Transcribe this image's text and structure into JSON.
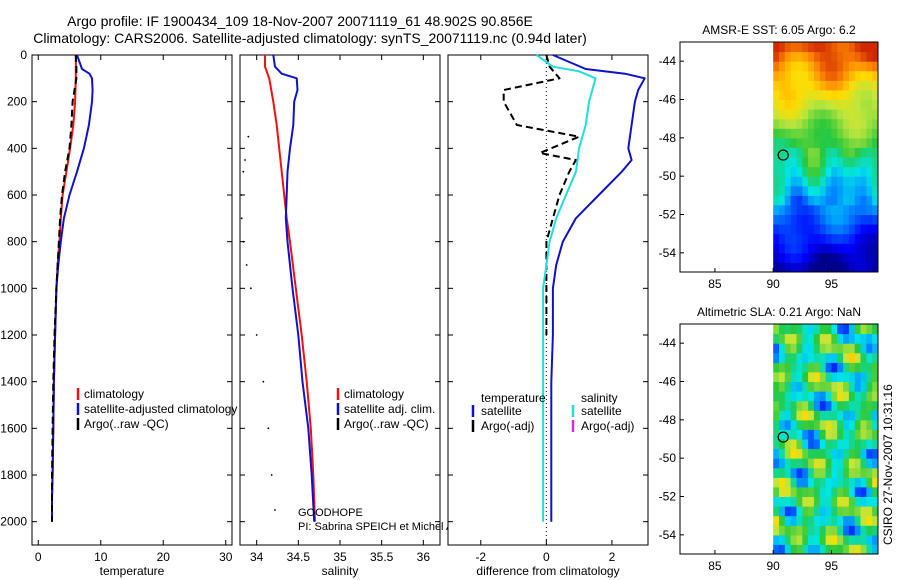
{
  "header": {
    "line1": "Argo profile: IF 1900434_109 18-Nov-2007 20071119_61 48.902S 90.856E",
    "line2": "Climatology: CARS2006. Satellite-adjusted climatology: synTS_20071119.nc (0.94d later)"
  },
  "colors": {
    "climatology": "#ee1111",
    "satellite": "#1111cc",
    "argo": "#000000",
    "satellite_salinity": "#22dddd",
    "argo_adj_salinity": "#cc33cc"
  },
  "chart_data": [
    {
      "id": "temperature",
      "type": "line",
      "xlabel": "temperature",
      "xlim": [
        -1,
        31
      ],
      "ylim": [
        2100,
        0
      ],
      "xticks": [
        0,
        10,
        20,
        30
      ],
      "yticks": [
        0,
        200,
        400,
        600,
        800,
        1000,
        1200,
        1400,
        1600,
        1800,
        2000
      ],
      "series": [
        {
          "name": "climatology",
          "style": "solid",
          "color": "#ee1111",
          "points": [
            [
              6.0,
              0
            ],
            [
              6.0,
              50
            ],
            [
              6.0,
              100
            ],
            [
              5.9,
              200
            ],
            [
              5.6,
              300
            ],
            [
              5.1,
              400
            ],
            [
              4.5,
              500
            ],
            [
              3.9,
              600
            ],
            [
              3.6,
              700
            ],
            [
              3.4,
              800
            ],
            [
              3.1,
              900
            ],
            [
              2.9,
              1000
            ],
            [
              2.7,
              1200
            ],
            [
              2.5,
              1400
            ],
            [
              2.4,
              1600
            ],
            [
              2.3,
              1800
            ],
            [
              2.2,
              1900
            ],
            [
              2.2,
              2000
            ]
          ]
        },
        {
          "name": "satellite-adjusted climatology",
          "style": "solid",
          "color": "#1111cc",
          "points": [
            [
              6.2,
              0
            ],
            [
              7.0,
              60
            ],
            [
              8.2,
              80
            ],
            [
              8.6,
              100
            ],
            [
              8.7,
              150
            ],
            [
              8.6,
              200
            ],
            [
              8.1,
              300
            ],
            [
              7.3,
              400
            ],
            [
              6.2,
              500
            ],
            [
              5.0,
              600
            ],
            [
              4.1,
              700
            ],
            [
              3.6,
              800
            ],
            [
              3.2,
              900
            ],
            [
              2.9,
              1000
            ],
            [
              2.7,
              1200
            ],
            [
              2.5,
              1400
            ],
            [
              2.4,
              1600
            ],
            [
              2.3,
              1800
            ],
            [
              2.2,
              1900
            ],
            [
              2.2,
              2000
            ]
          ]
        },
        {
          "name": "Argo(..raw -QC)",
          "style": "dashed",
          "color": "#000000",
          "points": [
            [
              6.0,
              0
            ],
            [
              6.1,
              50
            ],
            [
              6.1,
              100
            ],
            [
              5.5,
              200
            ],
            [
              5.3,
              300
            ],
            [
              5.0,
              400
            ],
            [
              4.3,
              500
            ],
            [
              3.8,
              600
            ],
            [
              3.5,
              700
            ],
            [
              3.3,
              800
            ],
            [
              3.1,
              900
            ],
            [
              2.9,
              1000
            ],
            [
              2.6,
              1200
            ],
            [
              2.4,
              1400
            ],
            [
              2.3,
              1600
            ],
            [
              2.2,
              1800
            ],
            [
              2.2,
              1900
            ],
            [
              2.2,
              2000
            ]
          ]
        }
      ],
      "legend": [
        "climatology",
        "satellite-adjusted climatology",
        "Argo(..raw -QC)"
      ]
    },
    {
      "id": "salinity",
      "type": "line",
      "xlabel": "salinity",
      "xlim": [
        33.8,
        36.2
      ],
      "ylim": [
        2100,
        0
      ],
      "xticks": [
        34,
        34.5,
        35,
        35.5,
        36
      ],
      "xtick_labels": [
        "34",
        "34.5",
        "35",
        "35.5",
        "36"
      ],
      "series": [
        {
          "name": "climatology",
          "style": "solid",
          "color": "#ee1111",
          "points": [
            [
              34.1,
              0
            ],
            [
              34.1,
              50
            ],
            [
              34.15,
              100
            ],
            [
              34.2,
              200
            ],
            [
              34.24,
              300
            ],
            [
              34.27,
              400
            ],
            [
              34.3,
              500
            ],
            [
              34.33,
              600
            ],
            [
              34.36,
              700
            ],
            [
              34.4,
              800
            ],
            [
              34.47,
              1000
            ],
            [
              34.54,
              1200
            ],
            [
              34.6,
              1400
            ],
            [
              34.65,
              1600
            ],
            [
              34.68,
              1800
            ],
            [
              34.7,
              2000
            ]
          ]
        },
        {
          "name": "satellite adj. clim.",
          "style": "solid",
          "color": "#1111cc",
          "points": [
            [
              34.2,
              0
            ],
            [
              34.22,
              50
            ],
            [
              34.3,
              80
            ],
            [
              34.48,
              100
            ],
            [
              34.49,
              150
            ],
            [
              34.45,
              200
            ],
            [
              34.44,
              300
            ],
            [
              34.4,
              400
            ],
            [
              34.37,
              500
            ],
            [
              34.36,
              600
            ],
            [
              34.35,
              700
            ],
            [
              34.37,
              800
            ],
            [
              34.4,
              900
            ],
            [
              34.43,
              1000
            ],
            [
              34.5,
              1200
            ],
            [
              34.55,
              1400
            ],
            [
              34.62,
              1600
            ],
            [
              34.66,
              1800
            ],
            [
              34.69,
              2000
            ]
          ]
        },
        {
          "name": "Argo(..raw -QC)",
          "style": "dotted",
          "color": "#000000",
          "points": [
            [
              33.9,
              350
            ],
            [
              33.86,
              450
            ],
            [
              33.84,
              500
            ],
            [
              33.82,
              600
            ],
            [
              33.82,
              700
            ],
            [
              33.84,
              800
            ],
            [
              33.88,
              900
            ],
            [
              33.93,
              1000
            ],
            [
              34.0,
              1200
            ],
            [
              34.08,
              1400
            ],
            [
              34.14,
              1600
            ],
            [
              34.18,
              1800
            ],
            [
              34.22,
              1950
            ]
          ]
        }
      ],
      "legend": [
        "climatology",
        "satellite adj. clim.",
        "Argo(..raw -QC)"
      ],
      "annotations": [
        "GOODHOPE",
        "PI: Sabrina SPEICH et Michel ARHAN"
      ]
    },
    {
      "id": "difference",
      "type": "line",
      "xlabel": "difference from climatology",
      "xlim": [
        -3,
        3.1
      ],
      "ylim": [
        2100,
        0
      ],
      "xticks": [
        -2,
        0,
        2
      ],
      "series": [
        {
          "name": "temperature satellite",
          "style": "solid",
          "color": "#1111cc",
          "points": [
            [
              0.2,
              0
            ],
            [
              1.2,
              60
            ],
            [
              2.4,
              80
            ],
            [
              3.0,
              100
            ],
            [
              2.8,
              150
            ],
            [
              2.7,
              200
            ],
            [
              2.6,
              300
            ],
            [
              2.5,
              400
            ],
            [
              2.6,
              450
            ],
            [
              2.3,
              500
            ],
            [
              1.6,
              600
            ],
            [
              0.9,
              700
            ],
            [
              0.5,
              800
            ],
            [
              0.3,
              900
            ],
            [
              0.2,
              1000
            ],
            [
              0.2,
              1200
            ],
            [
              0.15,
              1400
            ],
            [
              0.15,
              1600
            ],
            [
              0.15,
              1800
            ],
            [
              0.15,
              2000
            ]
          ]
        },
        {
          "name": "Argo(-adj) temperature",
          "style": "dashed",
          "color": "#000000",
          "points": [
            [
              0.0,
              0
            ],
            [
              0.1,
              50
            ],
            [
              0.4,
              100
            ],
            [
              -1.3,
              150
            ],
            [
              -1.3,
              200
            ],
            [
              -0.9,
              300
            ],
            [
              1.0,
              350
            ],
            [
              -0.2,
              420
            ],
            [
              0.9,
              450
            ],
            [
              0.7,
              500
            ],
            [
              0.4,
              600
            ],
            [
              0.2,
              700
            ],
            [
              0.0,
              800
            ],
            [
              0.0,
              900
            ],
            [
              0.0,
              1000
            ],
            [
              0.0,
              1200
            ]
          ]
        },
        {
          "name": "salinity satellite",
          "style": "solid",
          "color": "#22dddd",
          "points": [
            [
              -0.3,
              0
            ],
            [
              0.2,
              50
            ],
            [
              1.0,
              70
            ],
            [
              1.5,
              100
            ],
            [
              1.3,
              200
            ],
            [
              1.2,
              300
            ],
            [
              1.0,
              400
            ],
            [
              0.9,
              500
            ],
            [
              0.6,
              600
            ],
            [
              0.3,
              700
            ],
            [
              0.1,
              800
            ],
            [
              0.0,
              900
            ],
            [
              -0.1,
              1000
            ],
            [
              -0.1,
              1200
            ],
            [
              -0.1,
              1400
            ],
            [
              -0.1,
              1600
            ],
            [
              -0.1,
              1800
            ],
            [
              -0.1,
              2000
            ]
          ]
        }
      ],
      "reference_line": 0,
      "legend_headers": [
        "temperature",
        "salinity"
      ],
      "legend": [
        "satellite",
        "Argo(-adj)",
        "satellite",
        "Argo(-adj)"
      ]
    },
    {
      "id": "sst_map",
      "type": "heatmap",
      "title": "AMSR-E SST: 6.05 Argo: 6.2",
      "xlim": [
        82,
        99
      ],
      "ylim": [
        -55,
        -43
      ],
      "xticks": [
        85,
        90,
        95
      ],
      "yticks": [
        -44,
        -46,
        -48,
        -50,
        -52,
        -54
      ],
      "data_lon_range": [
        90,
        99
      ],
      "marker": {
        "lon": 90.86,
        "lat": -48.9
      }
    },
    {
      "id": "sla_map",
      "type": "heatmap",
      "title": "Altimetric SLA: 0.21 Argo: NaN",
      "xlim": [
        82,
        99
      ],
      "ylim": [
        -55,
        -43
      ],
      "xticks": [
        85,
        90,
        95
      ],
      "yticks": [
        -44,
        -46,
        -48,
        -50,
        -52,
        -54
      ],
      "data_lon_range": [
        90,
        99
      ],
      "marker": {
        "lon": 90.86,
        "lat": -48.9
      }
    }
  ],
  "footer": {
    "stamp": "CSIRO 27-Nov-2007 10:31:16"
  }
}
